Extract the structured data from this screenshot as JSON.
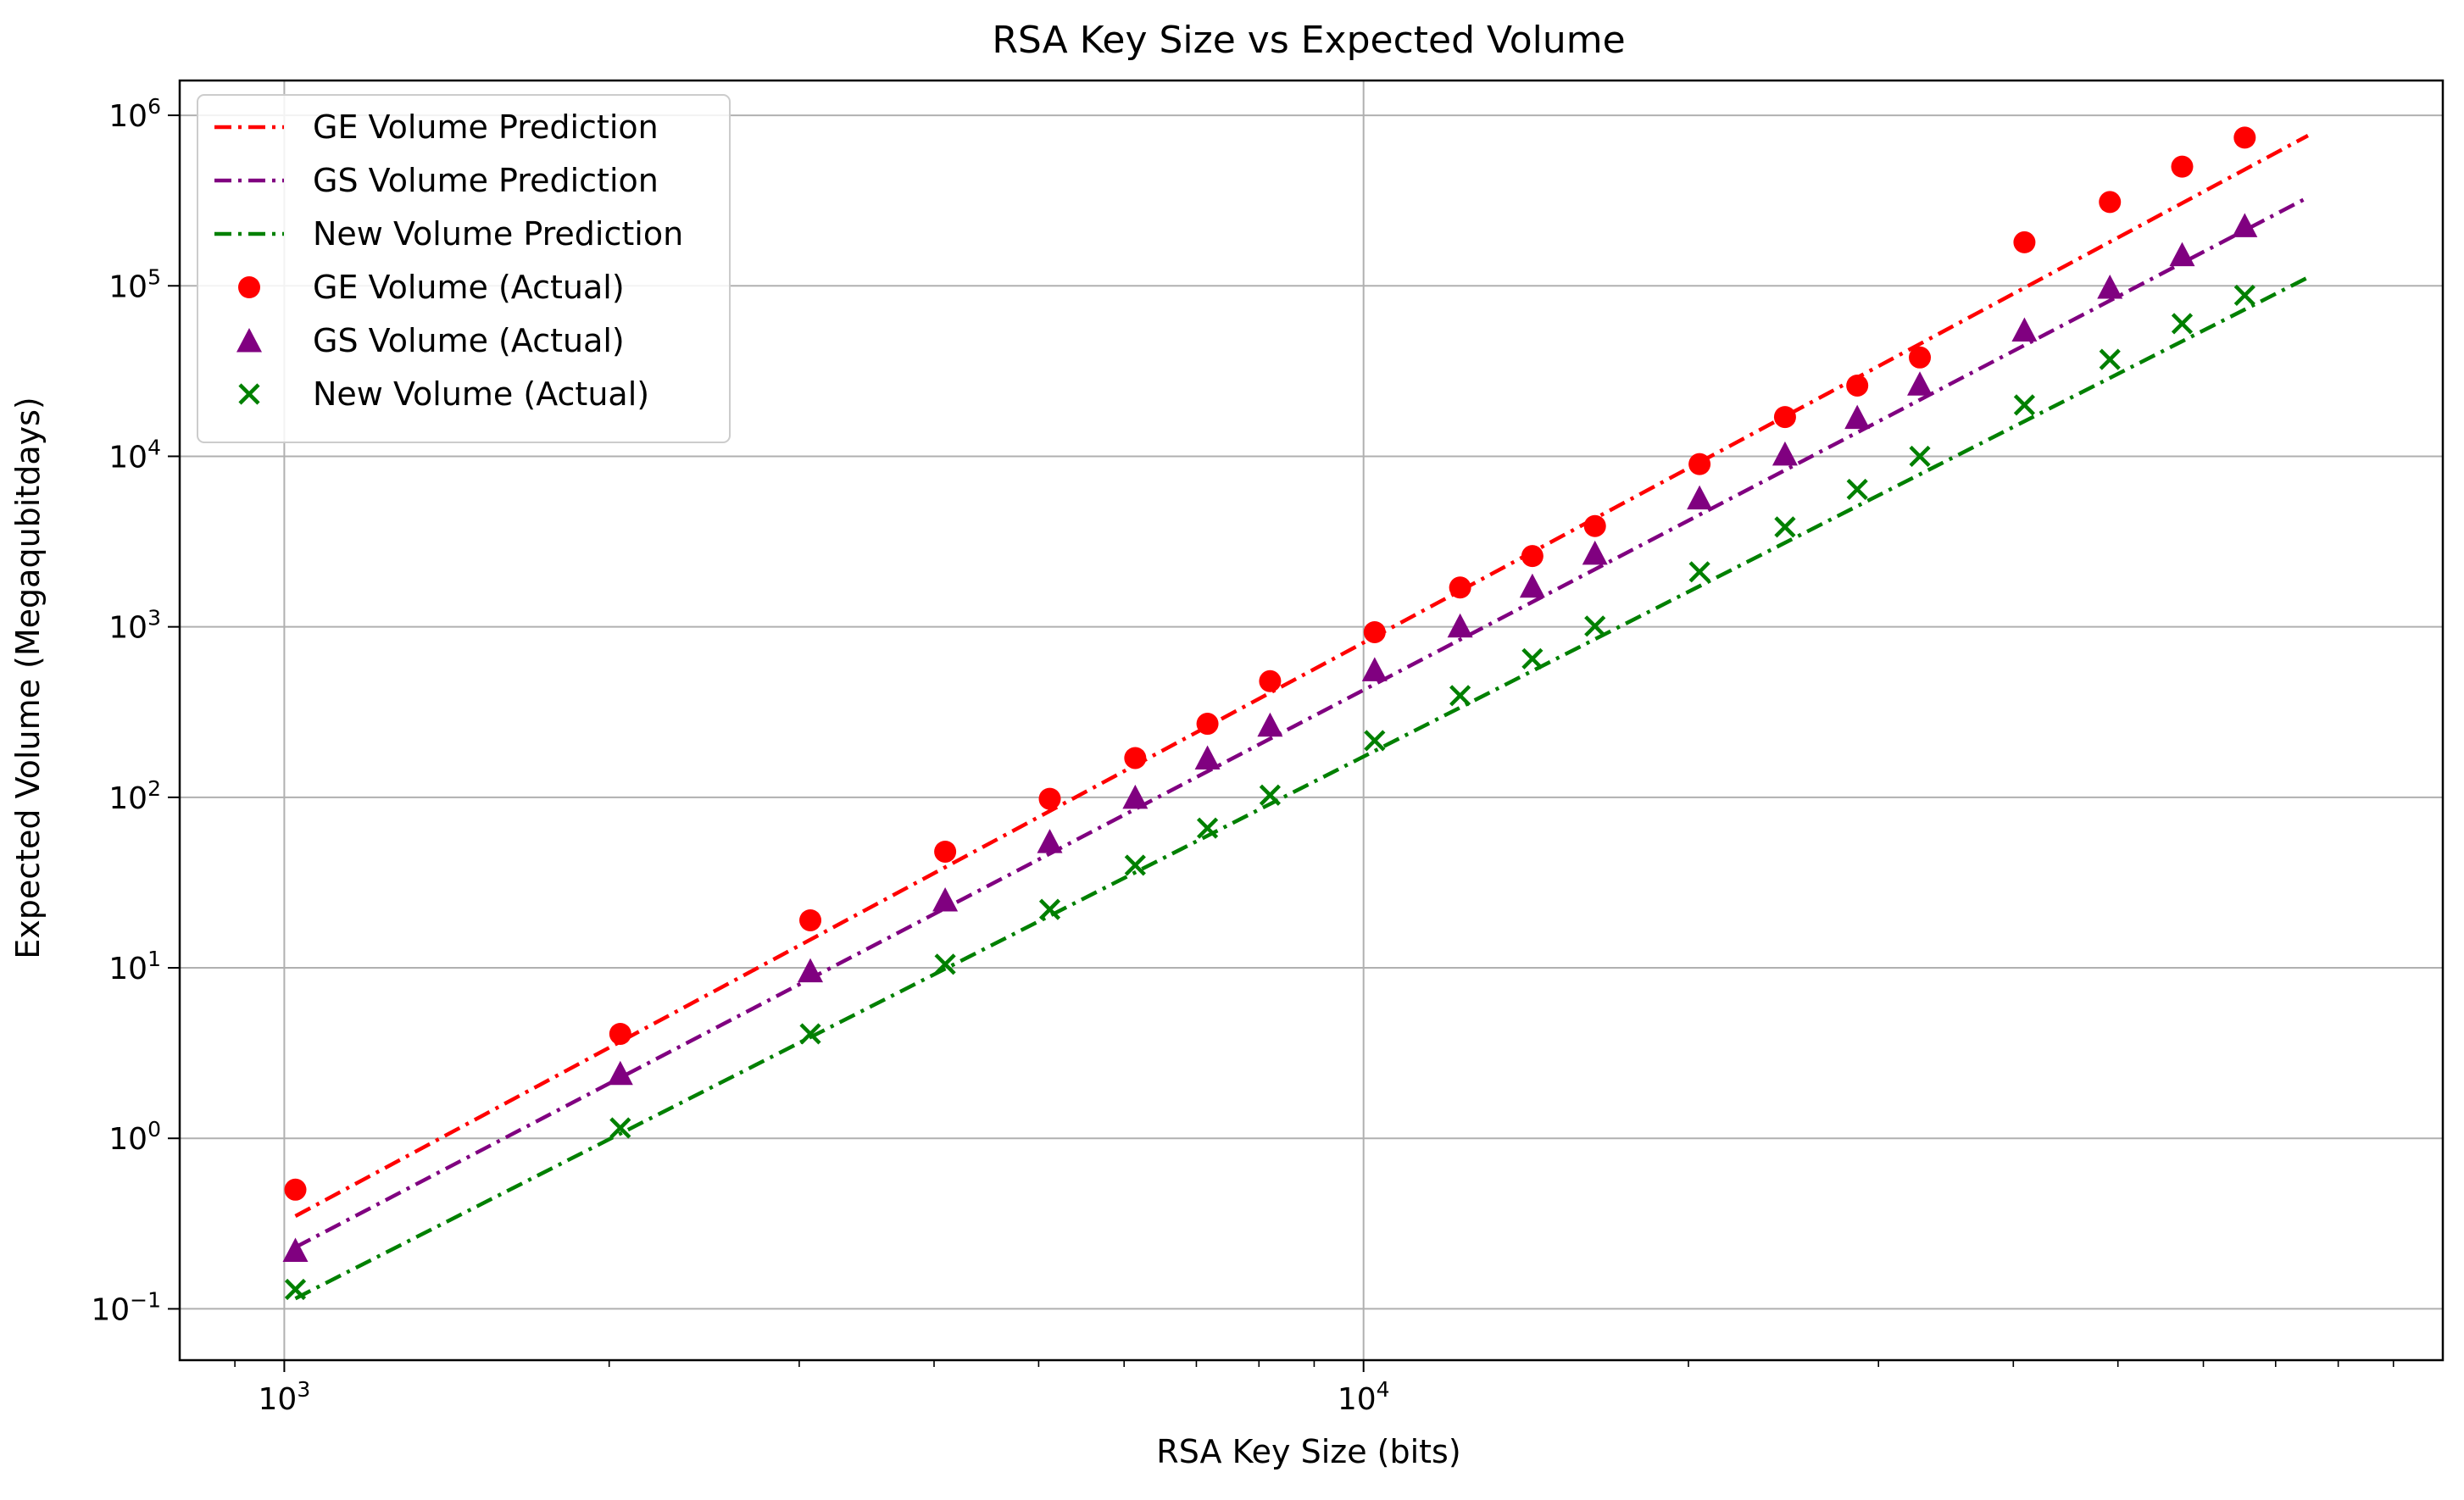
{
  "chart_data": {
    "type": "scatter",
    "title": "RSA Key Size vs Expected Volume",
    "xlabel": "RSA Key Size (bits)",
    "ylabel": "Expected Volume (Megaqubitdays)",
    "xscale": "log",
    "yscale": "log",
    "xlim": [
      800,
      100000
    ],
    "ylim": [
      0.05,
      1600000
    ],
    "grid": true,
    "legend_position": "top-left",
    "x_ticks": [
      {
        "value": 1000,
        "base": "10",
        "exp": "3"
      },
      {
        "value": 10000,
        "base": "10",
        "exp": "4"
      }
    ],
    "y_ticks": [
      {
        "value": 0.1,
        "base": "10",
        "exp": "−1"
      },
      {
        "value": 1,
        "base": "10",
        "exp": "0"
      },
      {
        "value": 10,
        "base": "10",
        "exp": "1"
      },
      {
        "value": 100,
        "base": "10",
        "exp": "2"
      },
      {
        "value": 1000,
        "base": "10",
        "exp": "3"
      },
      {
        "value": 10000,
        "base": "10",
        "exp": "4"
      },
      {
        "value": 100000,
        "base": "10",
        "exp": "5"
      },
      {
        "value": 1000000,
        "base": "10",
        "exp": "6"
      }
    ],
    "lines": [
      {
        "name": "GE Volume Prediction",
        "color": "#ff0000",
        "style": "dashdot",
        "x": [
          1024,
          75000
        ],
        "y": [
          0.35,
          760000
        ]
      },
      {
        "name": "GS Volume Prediction",
        "color": "#800080",
        "style": "dashdot",
        "x": [
          1024,
          75000
        ],
        "y": [
          0.23,
          330000
        ]
      },
      {
        "name": "New Volume Prediction",
        "color": "#008000",
        "style": "dashdot",
        "x": [
          1024,
          75000
        ],
        "y": [
          0.115,
          112000
        ]
      }
    ],
    "series": [
      {
        "name": "GE Volume (Actual)",
        "color": "#ff0000",
        "marker": "circle",
        "x": [
          1024,
          2048,
          3072,
          4096,
          5120,
          6144,
          7168,
          8192,
          10240,
          12288,
          14336,
          16384,
          20480,
          24576,
          28672,
          32768,
          40960,
          49152,
          57344,
          65536
        ],
        "y": [
          0.5,
          4.1,
          19,
          48,
          98,
          170,
          270,
          480,
          930,
          1700,
          2600,
          3900,
          9000,
          17000,
          26000,
          38000,
          180000,
          310000,
          500000,
          740000
        ]
      },
      {
        "name": "GS Volume (Actual)",
        "color": "#800080",
        "marker": "triangle",
        "x": [
          1024,
          2048,
          3072,
          4096,
          5120,
          6144,
          7168,
          8192,
          10240,
          12288,
          14336,
          16384,
          20480,
          24576,
          28672,
          32768,
          40960,
          49152,
          57344,
          65536
        ],
        "y": [
          0.22,
          2.4,
          9.6,
          25,
          55,
          100,
          170,
          265,
          560,
          1010,
          1730,
          2700,
          5700,
          10300,
          16900,
          26500,
          55000,
          98000,
          152000,
          225000
        ]
      },
      {
        "name": "New Volume (Actual)",
        "color": "#008000",
        "marker": "x",
        "x": [
          1024,
          2048,
          3072,
          4096,
          5120,
          6144,
          7168,
          8192,
          10240,
          12288,
          14336,
          16384,
          20480,
          24576,
          28672,
          32768,
          40960,
          49152,
          57344,
          65536
        ],
        "y": [
          0.13,
          1.15,
          4.1,
          10.5,
          22,
          40,
          66,
          103,
          215,
          395,
          650,
          1010,
          2100,
          3850,
          6400,
          10000,
          20000,
          37000,
          60000,
          88000
        ]
      }
    ]
  }
}
